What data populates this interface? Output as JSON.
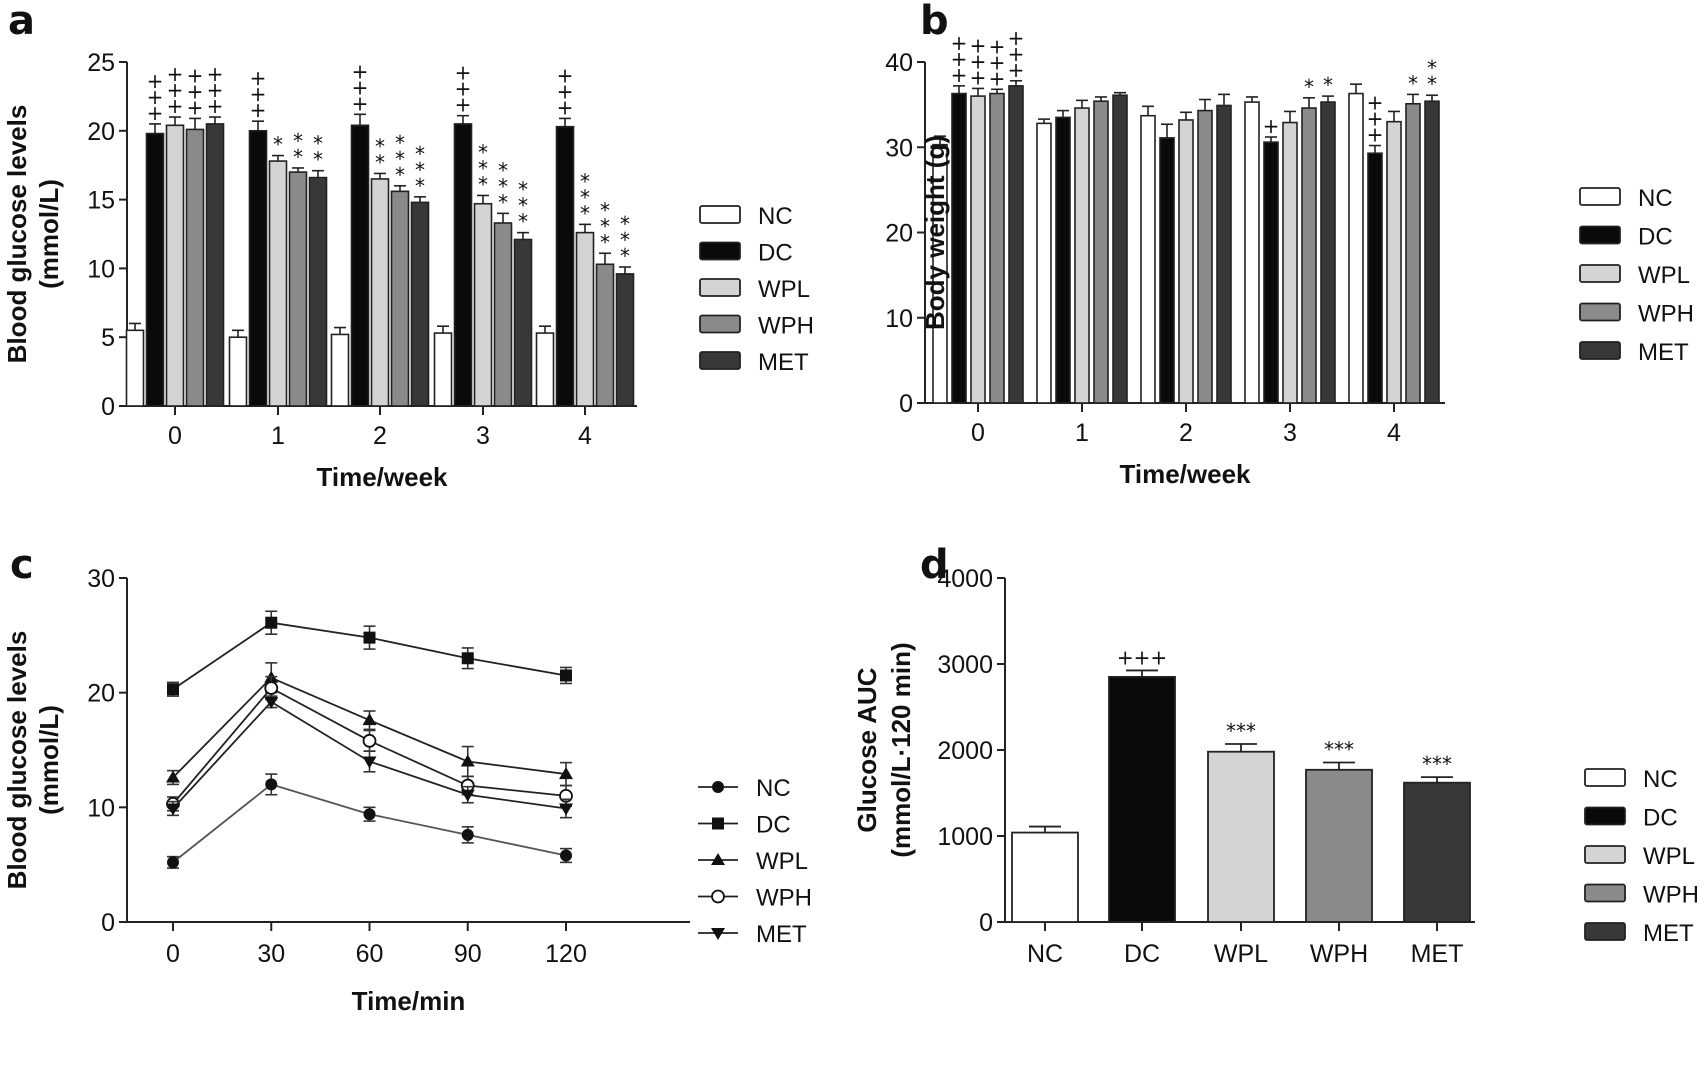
{
  "panels": {
    "a": {
      "letter": "a"
    },
    "b": {
      "letter": "b"
    },
    "c": {
      "letter": "c"
    },
    "d": {
      "letter": "d"
    }
  },
  "groups": [
    "NC",
    "DC",
    "WPL",
    "WPH",
    "MET"
  ],
  "group_colors": {
    "NC": "#ffffff",
    "DC": "#0a0a0a",
    "WPL": "#d4d4d4",
    "WPH": "#8a8a8a",
    "MET": "#383838"
  },
  "chart_data": [
    {
      "id": "a",
      "type": "bar",
      "title": "",
      "xlabel": "Time/week",
      "ylabel_line1": "Blood glucose levels",
      "ylabel_line2": "(mmol/L)",
      "categories": [
        "0",
        "1",
        "2",
        "3",
        "4"
      ],
      "ylim": [
        0,
        25
      ],
      "yticks": [
        0,
        5,
        10,
        15,
        20,
        25
      ],
      "legend_position": "right",
      "series": [
        {
          "name": "NC",
          "values": [
            5.5,
            5.0,
            5.2,
            5.3,
            5.3
          ],
          "errors": [
            0.5,
            0.5,
            0.5,
            0.5,
            0.5
          ],
          "sig": [
            "",
            "",
            "",
            "",
            ""
          ]
        },
        {
          "name": "DC",
          "values": [
            19.8,
            20.0,
            20.4,
            20.5,
            20.3
          ],
          "errors": [
            0.7,
            0.7,
            0.8,
            0.6,
            0.6
          ],
          "sig": [
            "+++",
            "+++",
            "+++",
            "+++",
            "+++"
          ]
        },
        {
          "name": "WPL",
          "values": [
            20.4,
            17.8,
            16.5,
            14.7,
            12.6
          ],
          "errors": [
            0.6,
            0.4,
            0.4,
            0.6,
            0.6
          ],
          "sig": [
            "+++",
            "*",
            "**",
            "***",
            "***"
          ]
        },
        {
          "name": "WPH",
          "values": [
            20.1,
            17.0,
            15.6,
            13.3,
            10.3
          ],
          "errors": [
            0.8,
            0.3,
            0.4,
            0.7,
            0.8
          ],
          "sig": [
            "+++",
            "**",
            "***",
            "***",
            "***"
          ]
        },
        {
          "name": "MET",
          "values": [
            20.5,
            16.6,
            14.8,
            12.1,
            9.6
          ],
          "errors": [
            0.5,
            0.5,
            0.4,
            0.5,
            0.5
          ],
          "sig": [
            "+++",
            "**",
            "***",
            "***",
            "***"
          ]
        }
      ]
    },
    {
      "id": "b",
      "type": "bar",
      "title": "",
      "xlabel": "Time/week",
      "ylabel_line1": "Body weight (g)",
      "ylabel_line2": "",
      "categories": [
        "0",
        "1",
        "2",
        "3",
        "4"
      ],
      "ylim": [
        0,
        40
      ],
      "yticks": [
        0,
        10,
        20,
        30,
        40
      ],
      "legend_position": "right",
      "series": [
        {
          "name": "NC",
          "values": [
            30.3,
            32.8,
            33.7,
            35.3,
            36.3
          ],
          "errors": [
            1.0,
            0.5,
            1.1,
            0.6,
            1.1
          ],
          "sig": [
            "",
            "",
            "",
            "",
            ""
          ]
        },
        {
          "name": "DC",
          "values": [
            36.3,
            33.5,
            31.1,
            30.6,
            29.3
          ],
          "errors": [
            0.9,
            0.8,
            1.6,
            0.6,
            0.9
          ],
          "sig": [
            "+++",
            "",
            "",
            "+",
            "+++"
          ]
        },
        {
          "name": "WPL",
          "values": [
            36.0,
            34.6,
            33.2,
            32.9,
            33.0
          ],
          "errors": [
            0.9,
            0.9,
            0.9,
            1.3,
            1.2
          ],
          "sig": [
            "+++",
            "",
            "",
            "",
            ""
          ]
        },
        {
          "name": "WPH",
          "values": [
            36.3,
            35.4,
            34.3,
            34.6,
            35.1
          ],
          "errors": [
            0.5,
            0.5,
            1.3,
            1.2,
            1.1
          ],
          "sig": [
            "+++",
            "",
            "",
            "*",
            "*"
          ]
        },
        {
          "name": "MET",
          "values": [
            37.2,
            36.1,
            34.9,
            35.3,
            35.4
          ],
          "errors": [
            0.6,
            0.3,
            1.3,
            0.7,
            0.7
          ],
          "sig": [
            "+++",
            "",
            "",
            "*",
            "**"
          ]
        }
      ]
    },
    {
      "id": "c",
      "type": "line",
      "title": "",
      "xlabel": "Time/min",
      "ylabel_line1": "Blood glucose levels",
      "ylabel_line2": "(mmol/L)",
      "x": [
        0,
        30,
        60,
        90,
        120
      ],
      "xticks": [
        0,
        30,
        60,
        90,
        120
      ],
      "xlim": [
        -15,
        135
      ],
      "ylim": [
        0,
        30
      ],
      "yticks": [
        0,
        10,
        20,
        30
      ],
      "legend_position": "right",
      "series": [
        {
          "name": "NC",
          "marker": "circle-filled",
          "values": [
            5.2,
            12.0,
            9.4,
            7.6,
            5.8
          ],
          "errors": [
            0.5,
            0.9,
            0.6,
            0.7,
            0.6
          ]
        },
        {
          "name": "DC",
          "marker": "square-filled",
          "values": [
            20.3,
            26.1,
            24.8,
            23.0,
            21.5
          ],
          "errors": [
            0.6,
            1.0,
            1.0,
            0.9,
            0.7
          ]
        },
        {
          "name": "WPL",
          "marker": "triangle-up",
          "values": [
            12.6,
            21.3,
            17.6,
            14.0,
            12.9
          ],
          "errors": [
            0.6,
            1.3,
            0.8,
            1.3,
            1.0
          ]
        },
        {
          "name": "WPH",
          "marker": "circle-open",
          "values": [
            10.3,
            20.4,
            15.8,
            11.9,
            11.0
          ],
          "errors": [
            0.6,
            1.0,
            0.9,
            0.8,
            0.9
          ]
        },
        {
          "name": "MET",
          "marker": "triangle-down",
          "values": [
            9.9,
            19.2,
            14.0,
            11.1,
            9.9
          ],
          "errors": [
            0.6,
            0.5,
            0.9,
            0.7,
            0.8
          ]
        }
      ]
    },
    {
      "id": "d",
      "type": "bar",
      "title": "",
      "xlabel": "",
      "ylabel_line1": "Glucose AUC",
      "ylabel_line2": "(mmol/L·120 min)",
      "categories": [
        "NC",
        "DC",
        "WPL",
        "WPH",
        "MET"
      ],
      "ylim": [
        0,
        4000
      ],
      "yticks": [
        0,
        1000,
        2000,
        3000,
        4000
      ],
      "legend_position": "right",
      "values": [
        1040,
        2850,
        1980,
        1770,
        1620
      ],
      "errors": [
        70,
        75,
        90,
        85,
        65
      ],
      "sig": [
        "",
        "+++",
        "***",
        "***",
        "***"
      ]
    }
  ]
}
